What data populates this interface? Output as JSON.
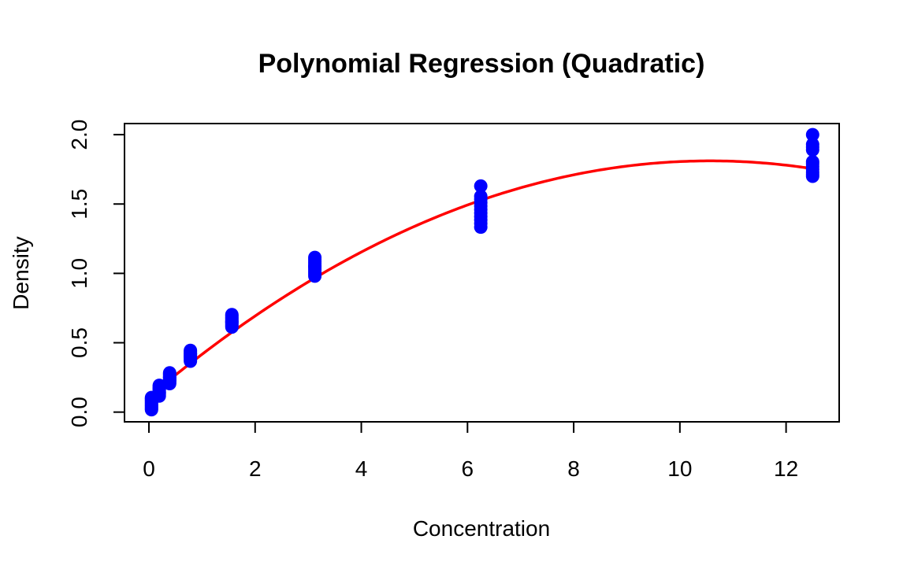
{
  "chart_data": {
    "type": "scatter",
    "title": "Polynomial Regression (Quadratic)",
    "xlabel": "Concentration",
    "ylabel": "Density",
    "xlim": [
      -0.46,
      13.0
    ],
    "ylim": [
      -0.07,
      2.08
    ],
    "x_ticks": [
      0,
      2,
      4,
      6,
      8,
      10,
      12
    ],
    "x_tick_labels": [
      "0",
      "2",
      "4",
      "6",
      "8",
      "10",
      "12"
    ],
    "y_ticks": [
      0.0,
      0.5,
      1.0,
      1.5,
      2.0
    ],
    "y_tick_labels": [
      "0.0",
      "0.5",
      "1.0",
      "1.5",
      "2.0"
    ],
    "grid": false,
    "legend": false,
    "point_color": "#0000ff",
    "line_color": "#ff0000",
    "series": [
      {
        "kind": "points",
        "x": [
          0.0488,
          0.0488,
          0.0488,
          0.0488,
          0.0488,
          0.0488,
          0.0488,
          0.0488,
          0.0488,
          0.0488,
          0.0488,
          0.1953,
          0.1953,
          0.1953,
          0.1953,
          0.1953,
          0.1953,
          0.1953,
          0.1953,
          0.1953,
          0.1953,
          0.1953,
          0.3906,
          0.3906,
          0.3906,
          0.3906,
          0.3906,
          0.3906,
          0.3906,
          0.3906,
          0.3906,
          0.3906,
          0.3906,
          0.7813,
          0.7813,
          0.7813,
          0.7813,
          0.7813,
          0.7813,
          0.7813,
          0.7813,
          0.7813,
          0.7813,
          0.7813,
          1.5625,
          1.5625,
          1.5625,
          1.5625,
          1.5625,
          1.5625,
          1.5625,
          1.5625,
          1.5625,
          1.5625,
          1.5625,
          3.125,
          3.125,
          3.125,
          3.125,
          3.125,
          3.125,
          3.125,
          3.125,
          3.125,
          3.125,
          3.125,
          6.25,
          6.25,
          6.25,
          6.25,
          6.25,
          6.25,
          6.25,
          6.25,
          6.25,
          6.25,
          6.25,
          12.5,
          12.5,
          12.5,
          12.5,
          12.5,
          12.5,
          12.5,
          12.5,
          12.5,
          12.5,
          12.5
        ],
        "y": [
          0.017,
          0.026,
          0.035,
          0.044,
          0.053,
          0.062,
          0.071,
          0.08,
          0.089,
          0.098,
          0.105,
          0.116,
          0.126,
          0.136,
          0.146,
          0.156,
          0.166,
          0.176,
          0.186,
          0.193,
          0.168,
          0.14,
          0.205,
          0.215,
          0.225,
          0.235,
          0.245,
          0.255,
          0.265,
          0.275,
          0.283,
          0.23,
          0.25,
          0.367,
          0.377,
          0.387,
          0.397,
          0.407,
          0.417,
          0.427,
          0.437,
          0.445,
          0.4,
          0.42,
          0.613,
          0.623,
          0.633,
          0.643,
          0.653,
          0.663,
          0.673,
          0.683,
          0.693,
          0.703,
          0.65,
          0.98,
          0.995,
          1.01,
          1.025,
          1.04,
          1.055,
          1.07,
          1.085,
          1.1,
          1.115,
          1.05,
          1.333,
          1.36,
          1.385,
          1.41,
          1.435,
          1.46,
          1.485,
          1.51,
          1.535,
          1.555,
          1.63,
          1.7,
          1.715,
          1.73,
          1.75,
          1.77,
          1.79,
          1.805,
          1.89,
          1.91,
          1.93,
          2.0
        ]
      },
      {
        "kind": "line",
        "fit": "quadratic",
        "coefficients": {
          "a": 0.11,
          "b": 0.3218,
          "c": -0.01522
        },
        "x_range": [
          0.0488,
          12.5
        ]
      }
    ]
  }
}
